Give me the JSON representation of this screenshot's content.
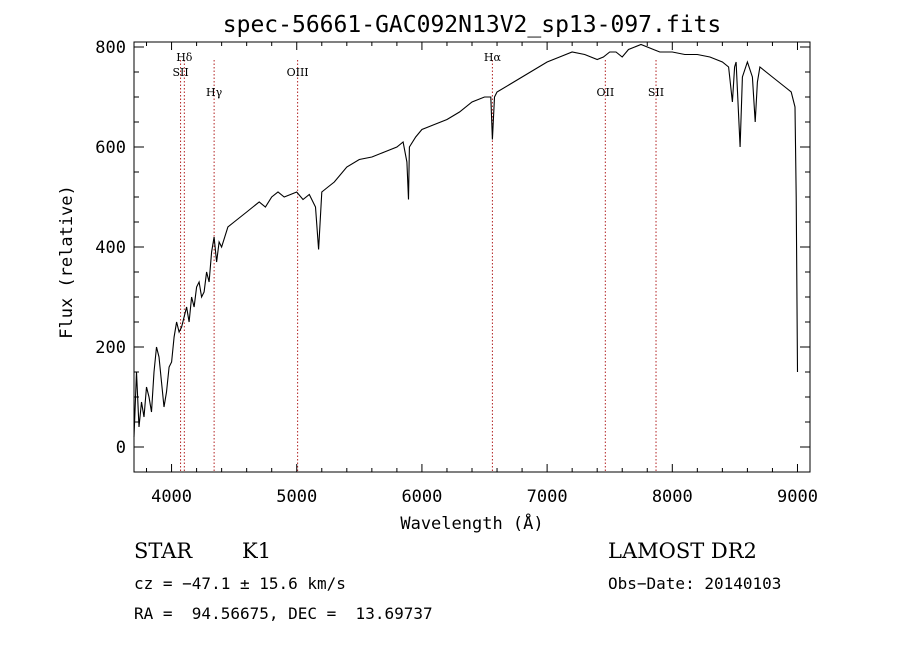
{
  "chart_data": {
    "type": "line",
    "title": "spec-56661-GAC092N13V2_sp13-097.fits",
    "xlabel": "Wavelength (Å)",
    "ylabel": "Flux (relative)",
    "xlim": [
      3700,
      9100
    ],
    "ylim": [
      -50,
      810
    ],
    "xticks": [
      4000,
      5000,
      6000,
      7000,
      8000,
      9000
    ],
    "xtick_labels": [
      "4000",
      "5000",
      "6000",
      "7000",
      "8000",
      "9000"
    ],
    "yticks": [
      0,
      200,
      400,
      600,
      800
    ],
    "ytick_labels": [
      "0",
      "200",
      "400",
      "600",
      "800"
    ],
    "grid": false,
    "series": [
      {
        "name": "flux",
        "color": "#000000",
        "x": [
          3700,
          3720,
          3740,
          3760,
          3780,
          3800,
          3820,
          3840,
          3860,
          3880,
          3900,
          3920,
          3940,
          3960,
          3980,
          4000,
          4020,
          4040,
          4060,
          4080,
          4100,
          4120,
          4140,
          4160,
          4180,
          4200,
          4220,
          4240,
          4260,
          4280,
          4300,
          4320,
          4340,
          4360,
          4380,
          4400,
          4450,
          4500,
          4550,
          4600,
          4650,
          4700,
          4750,
          4800,
          4850,
          4900,
          4950,
          5000,
          5050,
          5100,
          5150,
          5175,
          5200,
          5250,
          5300,
          5400,
          5500,
          5600,
          5700,
          5800,
          5850,
          5880,
          5893,
          5900,
          5950,
          6000,
          6100,
          6200,
          6300,
          6400,
          6500,
          6550,
          6563,
          6580,
          6600,
          6700,
          6800,
          6900,
          7000,
          7100,
          7200,
          7300,
          7400,
          7450,
          7500,
          7550,
          7600,
          7650,
          7700,
          7750,
          7800,
          7850,
          7900,
          8000,
          8100,
          8200,
          8300,
          8400,
          8450,
          8480,
          8498,
          8510,
          8542,
          8560,
          8600,
          8640,
          8662,
          8680,
          8700,
          8800,
          8850,
          8900,
          8950,
          8980,
          8990,
          9000
        ],
        "y": [
          20,
          150,
          40,
          90,
          60,
          120,
          100,
          70,
          150,
          200,
          180,
          130,
          80,
          110,
          160,
          170,
          220,
          250,
          230,
          240,
          260,
          280,
          250,
          300,
          280,
          320,
          330,
          300,
          310,
          350,
          330,
          390,
          420,
          370,
          410,
          400,
          440,
          450,
          460,
          470,
          480,
          490,
          480,
          500,
          510,
          500,
          505,
          510,
          495,
          505,
          480,
          395,
          510,
          520,
          530,
          560,
          575,
          580,
          590,
          600,
          610,
          570,
          495,
          600,
          620,
          635,
          645,
          655,
          670,
          690,
          700,
          700,
          615,
          700,
          710,
          725,
          740,
          755,
          770,
          780,
          790,
          785,
          775,
          780,
          790,
          790,
          780,
          795,
          800,
          805,
          800,
          795,
          790,
          790,
          785,
          785,
          780,
          770,
          760,
          690,
          760,
          770,
          600,
          740,
          770,
          740,
          650,
          730,
          760,
          740,
          730,
          720,
          710,
          680,
          500,
          150
        ]
      }
    ],
    "spectral_lines": [
      {
        "label": "Hδ",
        "wavelength": 4102,
        "row": 0
      },
      {
        "label": "SII",
        "wavelength": 4072,
        "row": 1
      },
      {
        "label": "Hγ",
        "wavelength": 4340,
        "row": 2
      },
      {
        "label": "OIII",
        "wavelength": 5007,
        "row": 1
      },
      {
        "label": "Hα",
        "wavelength": 6563,
        "row": 0
      },
      {
        "label": "OII",
        "wavelength": 7465,
        "row": 2
      },
      {
        "label": "SII",
        "wavelength": 7870,
        "row": 2
      }
    ],
    "line_color": "#b22222"
  },
  "info": {
    "object_class": "STAR",
    "subclass": "K1",
    "survey": "LAMOST DR2",
    "cz": "cz = −47.1 ± 15.6 km/s",
    "obs_date": "Obs−Date: 20140103",
    "coords": "RA =  94.56675, DEC =  13.69737"
  }
}
